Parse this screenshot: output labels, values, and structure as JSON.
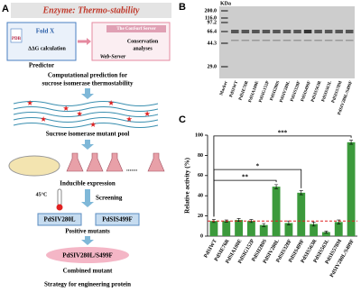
{
  "panel_labels": [
    "A",
    "B",
    "C"
  ],
  "panel_a": {
    "header": "Enzyme:  Thermo-stability",
    "pdb": "PDB",
    "foldx": "Fold X",
    "ddg": "ΔΔG calculation",
    "predictor": "Predictor",
    "consurf": "The ConSurf Server",
    "conservation": [
      "Conservation",
      "analyses"
    ],
    "web_server": "Web-Server",
    "prediction": [
      "Computational prediction for",
      "sucrose isomerase thermostability"
    ],
    "pool": "Sucrose isomerase mutant pool",
    "expression": "Inducible expression",
    "temperature": "45°C",
    "screening": "Screening",
    "positives": [
      "PdSIV280L",
      "PdSIS499F"
    ],
    "positive_label": "Positive mutants",
    "combined": "PdSIV280L/S499F",
    "combined_label": "Combined mutant",
    "strategy": "Strategy for engineering protein"
  },
  "panel_b": {
    "unit": "KDa",
    "markers": [
      "200.0",
      "116.0",
      "97.2",
      "66.4",
      "44.3",
      "29.0"
    ],
    "lanes": [
      "Marker",
      "PdSIWT",
      "PdSIE76R",
      "PdSIA100E",
      "PdSIG152P",
      "PdSII280S",
      "PdSIV280L",
      "PdSIS328F",
      "PdSIS499F",
      "PdSIS563R",
      "PdSIS563L",
      "PdSIS578M",
      "PdSIV280L/S499F"
    ]
  },
  "chart_data": {
    "type": "bar",
    "y_label": "Relative activity (%)",
    "categories": [
      "PdSIWT",
      "PdSIE76R",
      "PdSIA100E",
      "PdSIG152P",
      "PdSII280S",
      "PdSIV280L",
      "PdSIS328F",
      "PdSIS499F",
      "PdSIS563R",
      "PdSIS563L",
      "PdSIS578M",
      "PdSIV280L/S499F"
    ],
    "values": [
      15,
      15,
      16,
      15,
      11,
      49,
      13,
      43,
      12,
      4,
      14,
      93
    ],
    "errors": [
      1.5,
      1,
      1.5,
      1.5,
      1.5,
      2,
      2,
      2,
      2,
      1,
      2,
      2
    ],
    "color": "#3c9a3c",
    "reference_color": "#e02020",
    "ylim": [
      0,
      100
    ],
    "yticks": [
      0,
      20,
      40,
      60,
      80,
      100
    ],
    "brackets": [
      {
        "label": "***",
        "from": "PdSIWT",
        "to": "PdSIV280L/S499F"
      },
      {
        "label": "*",
        "from": "PdSIWT",
        "to": "PdSIS499F"
      },
      {
        "label": "**",
        "from": "PdSIWT",
        "to": "PdSIV280L"
      }
    ]
  }
}
